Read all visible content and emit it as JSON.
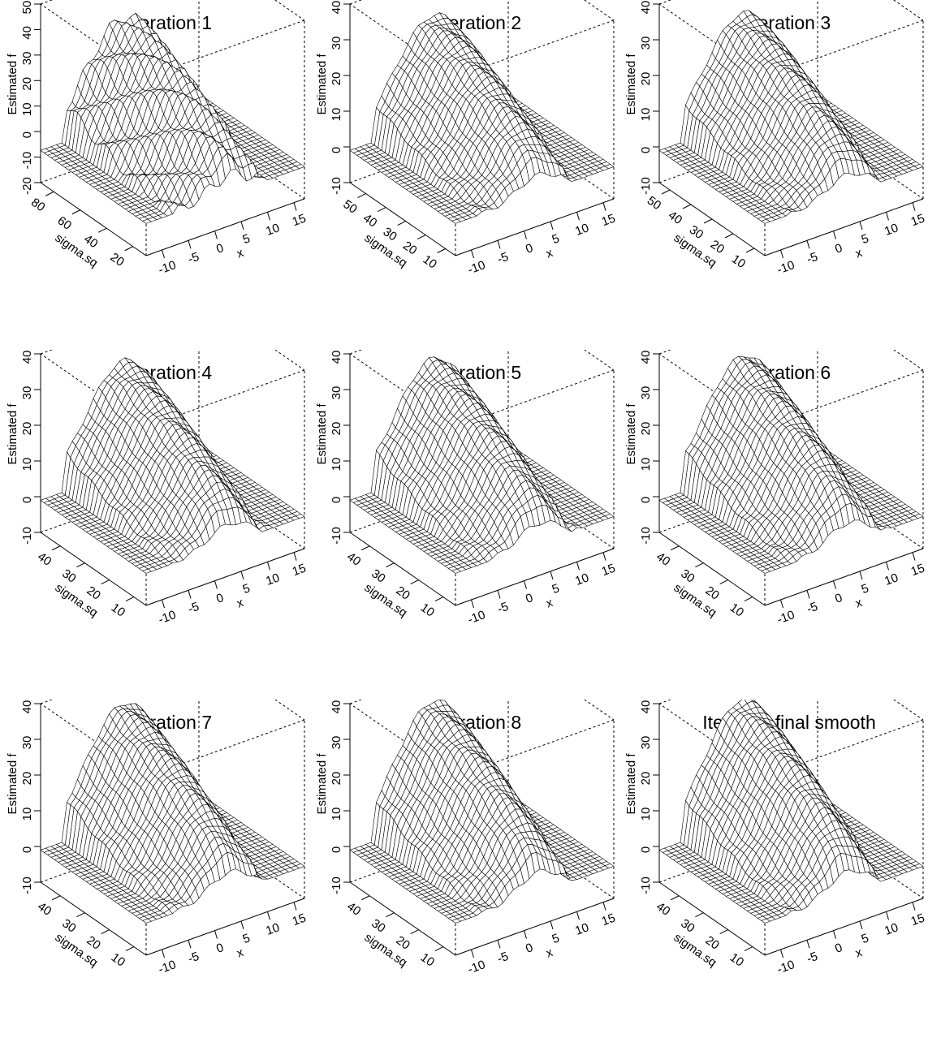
{
  "chart_data": [
    {
      "type": "surface",
      "title": "Iteration 1",
      "xlabel": "x",
      "ylabel": "sigma.sq",
      "zlabel": "Estimated f",
      "x_ticks": [
        "-10",
        "-5",
        "0",
        "5",
        "10",
        "15"
      ],
      "y_ticks": [
        "20",
        "40",
        "60",
        "80"
      ],
      "z_ticks": [
        "-20",
        "-10",
        "0",
        "10",
        "20",
        "30",
        "40",
        "50"
      ],
      "xlim": [
        -13,
        17
      ],
      "ylim": [
        10,
        90
      ],
      "zlim": [
        -20,
        50
      ]
    },
    {
      "type": "surface",
      "title": "Iteration 2",
      "xlabel": "x",
      "ylabel": "sigma.sq",
      "zlabel": "Estimated f",
      "x_ticks": [
        "-10",
        "-5",
        "0",
        "5",
        "10",
        "15"
      ],
      "y_ticks": [
        "10",
        "20",
        "30",
        "40",
        "50"
      ],
      "z_ticks": [
        "-10",
        "0",
        "10",
        "20",
        "30",
        "40"
      ],
      "xlim": [
        -13,
        17
      ],
      "ylim": [
        5,
        58
      ],
      "zlim": [
        -10,
        40
      ]
    },
    {
      "type": "surface",
      "title": "Iteration 3",
      "xlabel": "x",
      "ylabel": "sigma.sq",
      "zlabel": "Estimated f",
      "x_ticks": [
        "-10",
        "-5",
        "0",
        "5",
        "10",
        "15"
      ],
      "y_ticks": [
        "10",
        "20",
        "30",
        "40",
        "50"
      ],
      "z_ticks": [
        "-10",
        "0",
        "10",
        "20",
        "30",
        "40"
      ],
      "xlim": [
        -13,
        17
      ],
      "ylim": [
        5,
        55
      ],
      "zlim": [
        -10,
        40
      ]
    },
    {
      "type": "surface",
      "title": "Iteration 4",
      "xlabel": "x",
      "ylabel": "sigma.sq",
      "zlabel": "Estimated f",
      "x_ticks": [
        "-10",
        "-5",
        "0",
        "5",
        "10",
        "15"
      ],
      "y_ticks": [
        "10",
        "20",
        "30",
        "40"
      ],
      "z_ticks": [
        "-10",
        "0",
        "10",
        "20",
        "30",
        "40"
      ],
      "xlim": [
        -13,
        17
      ],
      "ylim": [
        5,
        48
      ],
      "zlim": [
        -10,
        40
      ]
    },
    {
      "type": "surface",
      "title": "Iteration 5",
      "xlabel": "x",
      "ylabel": "sigma.sq",
      "zlabel": "Estimated f",
      "x_ticks": [
        "-10",
        "-5",
        "0",
        "5",
        "10",
        "15"
      ],
      "y_ticks": [
        "10",
        "20",
        "30",
        "40"
      ],
      "z_ticks": [
        "-10",
        "0",
        "10",
        "20",
        "30",
        "40"
      ],
      "xlim": [
        -13,
        17
      ],
      "ylim": [
        5,
        48
      ],
      "zlim": [
        -10,
        40
      ]
    },
    {
      "type": "surface",
      "title": "Iteration 6",
      "xlabel": "x",
      "ylabel": "sigma.sq",
      "zlabel": "Estimated f",
      "x_ticks": [
        "-10",
        "-5",
        "0",
        "5",
        "10",
        "15"
      ],
      "y_ticks": [
        "10",
        "20",
        "30",
        "40"
      ],
      "z_ticks": [
        "-10",
        "0",
        "10",
        "20",
        "30",
        "40"
      ],
      "xlim": [
        -13,
        17
      ],
      "ylim": [
        5,
        48
      ],
      "zlim": [
        -10,
        40
      ]
    },
    {
      "type": "surface",
      "title": "Iteration 7",
      "xlabel": "x",
      "ylabel": "sigma.sq",
      "zlabel": "Estimated f",
      "x_ticks": [
        "-10",
        "-5",
        "0",
        "5",
        "10",
        "15"
      ],
      "y_ticks": [
        "10",
        "20",
        "30",
        "40"
      ],
      "z_ticks": [
        "-10",
        "0",
        "10",
        "20",
        "30",
        "40"
      ],
      "xlim": [
        -13,
        17
      ],
      "ylim": [
        5,
        48
      ],
      "zlim": [
        -10,
        40
      ]
    },
    {
      "type": "surface",
      "title": "Iteration 8",
      "xlabel": "x",
      "ylabel": "sigma.sq",
      "zlabel": "Estimated f",
      "x_ticks": [
        "-10",
        "-5",
        "0",
        "5",
        "10",
        "15"
      ],
      "y_ticks": [
        "10",
        "20",
        "30",
        "40"
      ],
      "z_ticks": [
        "-10",
        "0",
        "10",
        "20",
        "30",
        "40"
      ],
      "xlim": [
        -13,
        17
      ],
      "ylim": [
        5,
        48
      ],
      "zlim": [
        -10,
        40
      ]
    },
    {
      "type": "surface",
      "title": "Iteration final smooth",
      "xlabel": "x",
      "ylabel": "sigma.sq",
      "zlabel": "Estimated f",
      "x_ticks": [
        "-10",
        "-5",
        "0",
        "5",
        "10",
        "15"
      ],
      "y_ticks": [
        "10",
        "20",
        "30",
        "40"
      ],
      "z_ticks": [
        "-10",
        "0",
        "10",
        "20",
        "30",
        "40"
      ],
      "xlim": [
        -13,
        17
      ],
      "ylim": [
        5,
        48
      ],
      "zlim": [
        -10,
        40
      ]
    }
  ]
}
